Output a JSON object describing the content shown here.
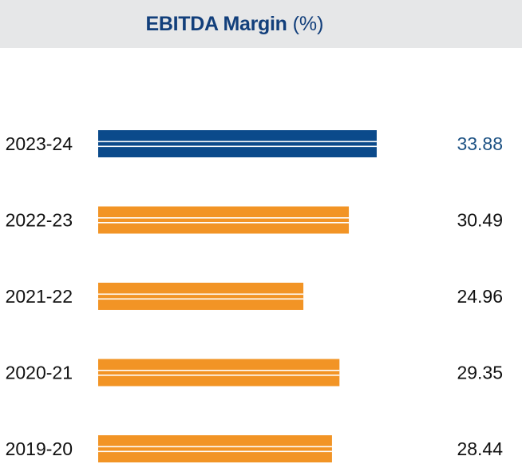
{
  "chart_data": {
    "type": "bar",
    "orientation": "horizontal",
    "title": "EBITDA Margin",
    "title_unit": "(%)",
    "categories": [
      "2023-24",
      "2022-23",
      "2021-22",
      "2020-21",
      "2019-20"
    ],
    "values": [
      33.88,
      30.49,
      24.96,
      29.35,
      28.44
    ],
    "value_labels": [
      "33.88",
      "30.49",
      "24.96",
      "29.35",
      "28.44"
    ],
    "xlim": [
      0,
      35
    ],
    "grid": false,
    "highlight_index": 0
  },
  "colors": {
    "highlight": "#0b4a8b",
    "bar": "#f29425",
    "value_text": "#111111",
    "highlight_value_text": "#1d5284",
    "title_text": "#123f7b",
    "header_bg": "#e6e7e8"
  }
}
